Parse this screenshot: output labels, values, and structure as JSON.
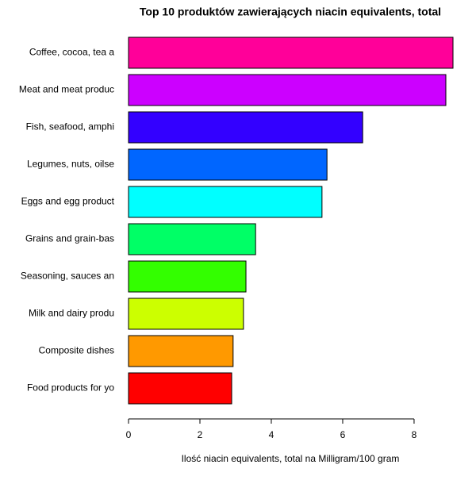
{
  "chart_data": {
    "type": "bar",
    "orientation": "horizontal",
    "title": "Top 10 produktów zawierających niacin equivalents, total",
    "xlabel": "Ilość niacin equivalents, total na Milligram/100 gram",
    "categories": [
      "Coffee, cocoa, tea a",
      "Meat and meat produc",
      "Fish, seafood, amphi",
      "Legumes, nuts, oilse",
      "Eggs and egg product",
      "Grains and grain-bas",
      "Seasoning, sauces an",
      "Milk and dairy produ",
      "Composite dishes",
      "Food products for yo"
    ],
    "values": [
      9.09,
      8.89,
      6.56,
      5.56,
      5.42,
      3.56,
      3.29,
      3.22,
      2.93,
      2.89
    ],
    "colors": [
      "#ff0099",
      "#cc00ff",
      "#3300ff",
      "#0066ff",
      "#00ffff",
      "#00ff66",
      "#33ff00",
      "#ccff00",
      "#ff9900",
      "#ff0000"
    ],
    "xlim": [
      0,
      9.09
    ],
    "xticks": [
      0,
      2,
      4,
      6,
      8
    ]
  }
}
